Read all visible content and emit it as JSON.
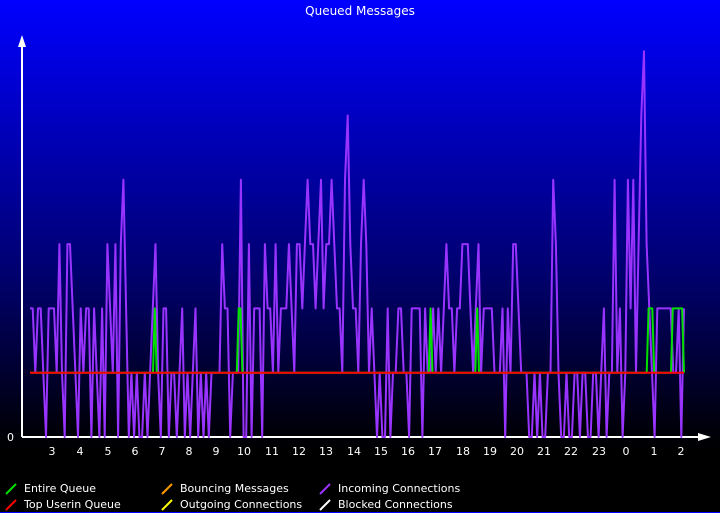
{
  "chart_data": {
    "type": "line",
    "title": "Queued Messages",
    "xlabel": "",
    "ylabel": "",
    "x_ticks": [
      "3",
      "4",
      "5",
      "6",
      "7",
      "8",
      "9",
      "10",
      "11",
      "12",
      "13",
      "14",
      "15",
      "16",
      "17",
      "18",
      "19",
      "20",
      "21",
      "22",
      "23",
      "0",
      "1",
      "2"
    ],
    "y_ticks": [
      "0"
    ],
    "ylim": [
      0,
      6
    ],
    "grid": false,
    "legend_position": "bottom",
    "series": [
      {
        "name": "Entire Queue",
        "color": "#00e000",
        "values": [
          1,
          1,
          1,
          1,
          1,
          1,
          1,
          1,
          1,
          1,
          1,
          1,
          1,
          1,
          1,
          1,
          1,
          1,
          1,
          1,
          1,
          1,
          1,
          1,
          1,
          1,
          1,
          1,
          1,
          1,
          1,
          1,
          1,
          1,
          1,
          1,
          1,
          1,
          1,
          1,
          1,
          1,
          1,
          1,
          1,
          1,
          1,
          1,
          1,
          1,
          1,
          1,
          1,
          1,
          1,
          1,
          1,
          1,
          1,
          1,
          1,
          1,
          1,
          1,
          1,
          1,
          1,
          2,
          1,
          1,
          1,
          1,
          1,
          1,
          1,
          1,
          1,
          1,
          1,
          1,
          1,
          1,
          1,
          1,
          1,
          1,
          1,
          1,
          1,
          1,
          1,
          1,
          1,
          1,
          1,
          1,
          1,
          1,
          1,
          1,
          1,
          1,
          1,
          1,
          1,
          1,
          1,
          1,
          1,
          1,
          1,
          1,
          2,
          2,
          1,
          1,
          1,
          1,
          1,
          1,
          1,
          1,
          1,
          1,
          1,
          1,
          1,
          1,
          1,
          1,
          1,
          1,
          1,
          1,
          1,
          1,
          1,
          1,
          1,
          1,
          1,
          1,
          1,
          1,
          1,
          1,
          1,
          1,
          1,
          1,
          1,
          1,
          1,
          1,
          1,
          1,
          1,
          1,
          1,
          1,
          1,
          1,
          1,
          1,
          1,
          1,
          1,
          1,
          1,
          1,
          1,
          1,
          1,
          1,
          1,
          1,
          1,
          1,
          1,
          1,
          1,
          1,
          1,
          1,
          1,
          1,
          1,
          1,
          1,
          1,
          1,
          1,
          1,
          1,
          1,
          1,
          1,
          1,
          1,
          1,
          1,
          1,
          1,
          1,
          1,
          1,
          1,
          1,
          1,
          1,
          1,
          1,
          1,
          1,
          1,
          2,
          1,
          1,
          1,
          1,
          1,
          1,
          1,
          1,
          1,
          1,
          1,
          1,
          1,
          1,
          1,
          1,
          1,
          1,
          1,
          1,
          1,
          1,
          1,
          1,
          2,
          1,
          1,
          1,
          1,
          1,
          1,
          1,
          1,
          1,
          1,
          1,
          1,
          1,
          1,
          1,
          1,
          1,
          1,
          1,
          1,
          1,
          1,
          1,
          1,
          1,
          1,
          1,
          1,
          1,
          1,
          1,
          1,
          1,
          1,
          1,
          1,
          1,
          1,
          1,
          1,
          1,
          1,
          1,
          1,
          1,
          1,
          1,
          1,
          1,
          1,
          1,
          1,
          1,
          1,
          1,
          1,
          1,
          1,
          1,
          1,
          1,
          1,
          1,
          1,
          1,
          1,
          1,
          1,
          1,
          1,
          1,
          1,
          1,
          1,
          1,
          1,
          1,
          1,
          1,
          1,
          1,
          1,
          1,
          1,
          1,
          1,
          1,
          1,
          1,
          1,
          1,
          2,
          2,
          2,
          1,
          1,
          1,
          1,
          1,
          1,
          1,
          1,
          1,
          1,
          2,
          2,
          2,
          2,
          2,
          2,
          1
        ]
      },
      {
        "name": "Top Userin Queue",
        "color": "#ff0000",
        "values": [
          1,
          1
        ]
      },
      {
        "name": "Bouncing Messages",
        "color": "#ff9900",
        "values": []
      },
      {
        "name": "Outgoing Connections",
        "color": "#ffff00",
        "values": []
      },
      {
        "name": "Incoming Connections",
        "color": "#9933ff",
        "values": [
          2,
          2,
          1,
          2,
          2,
          1,
          0,
          2,
          2,
          2,
          1,
          3,
          1,
          0,
          3,
          3,
          2,
          1,
          0,
          2,
          1,
          2,
          2,
          0,
          2,
          1,
          0,
          2,
          0,
          3,
          2,
          1,
          3,
          0,
          3,
          4,
          2,
          0,
          1,
          0,
          1,
          0,
          0,
          1,
          0,
          1,
          2,
          3,
          1,
          0,
          2,
          2,
          0,
          1,
          1,
          0,
          1,
          2,
          0,
          1,
          0,
          1,
          2,
          0,
          1,
          0,
          1,
          0,
          1,
          1,
          1,
          1,
          3,
          2,
          2,
          0,
          1,
          1,
          1,
          4,
          0,
          0,
          3,
          0,
          2,
          2,
          2,
          0,
          3,
          2,
          2,
          1,
          3,
          1,
          2,
          2,
          2,
          3,
          2,
          1,
          3,
          3,
          2,
          3,
          4,
          3,
          3,
          2,
          3,
          4,
          2,
          3,
          3,
          4,
          3,
          2,
          2,
          1,
          4,
          5,
          3,
          2,
          2,
          1,
          3,
          4,
          3,
          1,
          2,
          1,
          0,
          1,
          0,
          0,
          2,
          0,
          1,
          1,
          2,
          2,
          1,
          1,
          0,
          2,
          2,
          2,
          2,
          0,
          2,
          1,
          1,
          2,
          1,
          2,
          1,
          2,
          3,
          2,
          2,
          1,
          2,
          2,
          3,
          3,
          3,
          2,
          1,
          2,
          3,
          1,
          2,
          2,
          2,
          2,
          1,
          1,
          1,
          2,
          0,
          2,
          1,
          3,
          3,
          2,
          1,
          1,
          1,
          0,
          0,
          1,
          0,
          1,
          0,
          0,
          1,
          1,
          4,
          3,
          1,
          0,
          0,
          1,
          0,
          0,
          1,
          1,
          0,
          1,
          1,
          0,
          0,
          1,
          1,
          0,
          1,
          2,
          0,
          1,
          1,
          4,
          1,
          2,
          0,
          1,
          4,
          2,
          4,
          1,
          3,
          5,
          6,
          3,
          2,
          1,
          0,
          2,
          2,
          2,
          2,
          2,
          2,
          1,
          1,
          2,
          0,
          2
        ]
      },
      {
        "name": "Blocked Connections",
        "color": "#ffffff",
        "values": []
      }
    ]
  }
}
